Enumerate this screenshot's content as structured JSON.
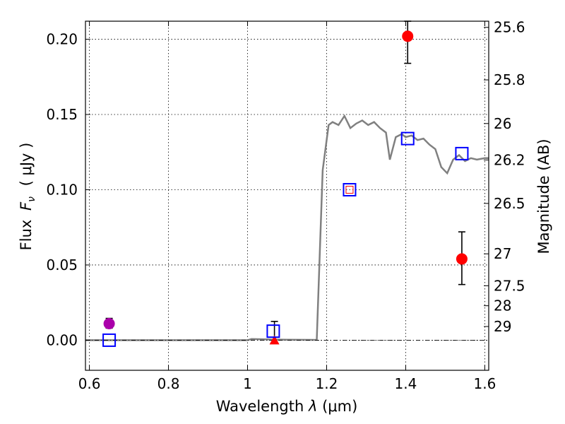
{
  "chart_data": {
    "type": "scatter",
    "xlabel_prefix": "Wavelength",
    "xlabel_symbol": "λ",
    "xlabel_unit": "(μm)",
    "ylabel_prefix": "Flux",
    "ylabel_symbol": "F",
    "ylabel_subscript": "ν",
    "ylabel_unit": "( μJy )",
    "right_ylabel": "Magnitude (AB)",
    "xlim": [
      0.59,
      1.61
    ],
    "ylim": [
      -0.02,
      0.212
    ],
    "x_ticks": [
      {
        "value": 0.6,
        "label": "0.6"
      },
      {
        "value": 0.8,
        "label": "0.8"
      },
      {
        "value": 1.0,
        "label": "1"
      },
      {
        "value": 1.2,
        "label": "1.2"
      },
      {
        "value": 1.4,
        "label": "1.4"
      },
      {
        "value": 1.6,
        "label": "1.6"
      }
    ],
    "y_ticks": [
      {
        "value": 0.0,
        "label": "0.00"
      },
      {
        "value": 0.05,
        "label": "0.05"
      },
      {
        "value": 0.1,
        "label": "0.10"
      },
      {
        "value": 0.15,
        "label": "0.15"
      },
      {
        "value": 0.2,
        "label": "0.20"
      }
    ],
    "right_ticks": [
      {
        "flux": 0.2079,
        "label": "25.6"
      },
      {
        "flux": 0.173,
        "label": "25.8"
      },
      {
        "flux": 0.144,
        "label": "26"
      },
      {
        "flux": 0.1198,
        "label": "26.2"
      },
      {
        "flux": 0.0909,
        "label": "26.5"
      },
      {
        "flux": 0.0574,
        "label": "27"
      },
      {
        "flux": 0.0362,
        "label": "27.5"
      },
      {
        "flux": 0.0229,
        "label": "28"
      },
      {
        "flux": 0.0091,
        "label": "29"
      }
    ],
    "model_spectrum": {
      "name": "SED model",
      "color": "#808080",
      "x": [
        0.59,
        0.8,
        1.0,
        1.01,
        1.05,
        1.1,
        1.175,
        1.19,
        1.205,
        1.215,
        1.23,
        1.245,
        1.26,
        1.275,
        1.29,
        1.305,
        1.32,
        1.335,
        1.35,
        1.36,
        1.375,
        1.39,
        1.4,
        1.415,
        1.43,
        1.445,
        1.46,
        1.475,
        1.49,
        1.505,
        1.52,
        1.535,
        1.55,
        1.565,
        1.58,
        1.6,
        1.61
      ],
      "y": [
        0.0,
        0.0,
        0.0,
        0.0008,
        0.0005,
        0.0003,
        0.0002,
        0.113,
        0.143,
        0.145,
        0.143,
        0.149,
        0.141,
        0.144,
        0.146,
        0.143,
        0.145,
        0.141,
        0.138,
        0.12,
        0.135,
        0.137,
        0.135,
        0.136,
        0.133,
        0.134,
        0.13,
        0.127,
        0.115,
        0.111,
        0.12,
        0.123,
        0.119,
        0.121,
        0.12,
        0.121,
        0.121
      ]
    },
    "series": [
      {
        "name": "observed-circles",
        "marker": "circle",
        "color": "#ff0000",
        "points": [
          {
            "x": 1.405,
            "y": 0.202,
            "err_low": 0.184,
            "err_high": 0.212
          },
          {
            "x": 1.542,
            "y": 0.054,
            "err_low": 0.037,
            "err_high": 0.072
          }
        ]
      },
      {
        "name": "optical-circle",
        "marker": "circle",
        "color": "#aa00aa",
        "points": [
          {
            "x": 0.65,
            "y": 0.011,
            "err_low": 0.008,
            "err_high": 0.0145
          }
        ]
      },
      {
        "name": "model-squares",
        "marker": "square",
        "color": "#0000ff",
        "points": [
          {
            "x": 0.65,
            "y": 0.0
          },
          {
            "x": 1.065,
            "y": 0.006
          },
          {
            "x": 1.258,
            "y": 0.1
          },
          {
            "x": 1.405,
            "y": 0.134
          },
          {
            "x": 1.542,
            "y": 0.124
          }
        ]
      },
      {
        "name": "upper-limit-triangle",
        "marker": "triangle",
        "color": "#ff0000",
        "points": [
          {
            "x": 1.068,
            "y": 0.0,
            "err_low": -0.002,
            "err_high": 0.0125
          }
        ]
      },
      {
        "name": "small-red-square",
        "marker": "small-square",
        "color": "#ff0000",
        "points": [
          {
            "x": 1.258,
            "y": 0.1
          }
        ]
      }
    ]
  }
}
